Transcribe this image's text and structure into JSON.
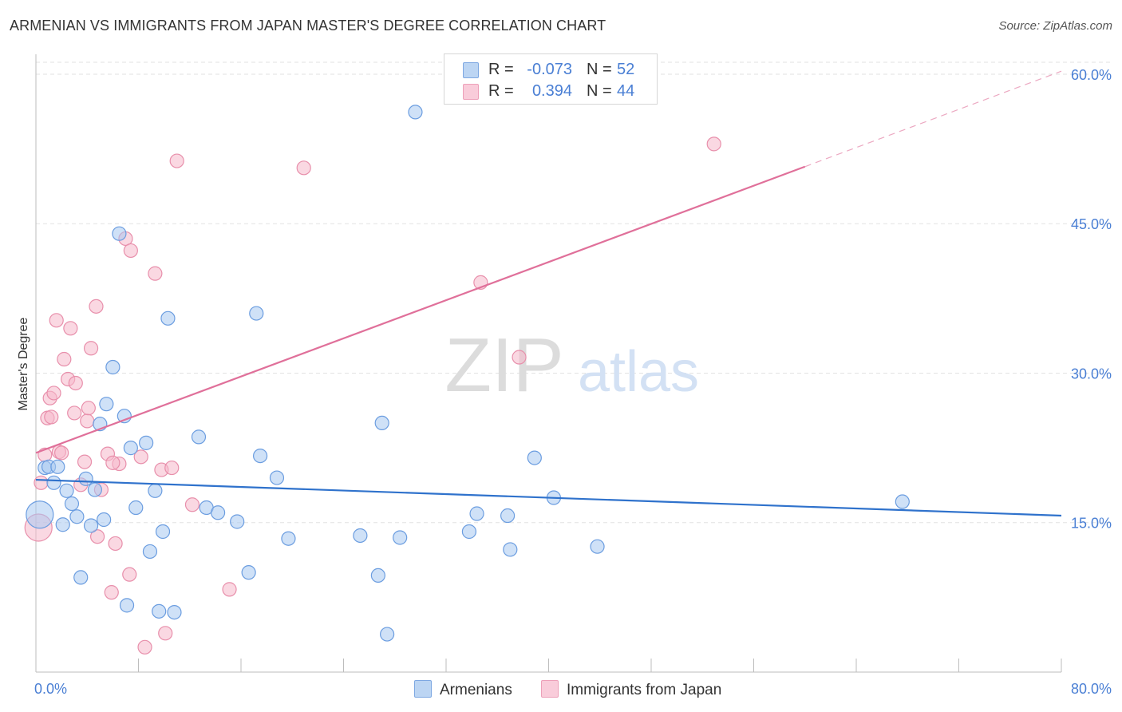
{
  "chart_data": {
    "type": "scatter",
    "title": "ARMENIAN VS IMMIGRANTS FROM JAPAN MASTER'S DEGREE CORRELATION CHART",
    "source": "Source: ZipAtlas.com",
    "ylabel": "Master's Degree",
    "xlabel": "",
    "watermark": {
      "zip": "ZIP",
      "atlas": "atlas"
    },
    "x_range": [
      0,
      80
    ],
    "y_range": [
      0,
      62
    ],
    "x_tick_labels": [
      "0.0%",
      "80.0%"
    ],
    "y_ticks": [
      {
        "value": 60,
        "label": "60.0%"
      },
      {
        "value": 45,
        "label": "45.0%"
      },
      {
        "value": 30,
        "label": "30.0%"
      },
      {
        "value": 15,
        "label": "15.0%"
      }
    ],
    "colors": {
      "armenians_fill": "#a7c8f0",
      "armenians_stroke": "#6b9de0",
      "armenians_line": "#2f72cc",
      "japan_fill": "#f5b8cb",
      "japan_stroke": "#e88fab",
      "japan_line": "#e0709a",
      "accent_text": "#4a7fd4"
    },
    "legend": {
      "armenians": {
        "r_label": "R =",
        "r_value": "-0.073",
        "n_label": "N =",
        "n_value": "52"
      },
      "japan": {
        "r_label": "R =",
        "r_value": "0.394",
        "n_label": "N =",
        "n_value": "44"
      }
    },
    "series": [
      {
        "name": "Armenians",
        "trend": {
          "x0": 0,
          "y0": 19.3,
          "x1": 80,
          "y1": 15.7,
          "solid_until": 80
        },
        "points": [
          {
            "x": 0.3,
            "y": 15.8,
            "big": true
          },
          {
            "x": 0.7,
            "y": 20.5
          },
          {
            "x": 1.0,
            "y": 20.6
          },
          {
            "x": 1.4,
            "y": 19.0
          },
          {
            "x": 1.7,
            "y": 20.6
          },
          {
            "x": 2.1,
            "y": 14.8
          },
          {
            "x": 2.4,
            "y": 18.2
          },
          {
            "x": 2.8,
            "y": 16.9
          },
          {
            "x": 3.2,
            "y": 15.6
          },
          {
            "x": 3.5,
            "y": 9.5
          },
          {
            "x": 3.9,
            "y": 19.4
          },
          {
            "x": 4.3,
            "y": 14.7
          },
          {
            "x": 4.6,
            "y": 18.3
          },
          {
            "x": 5.0,
            "y": 24.9
          },
          {
            "x": 5.3,
            "y": 15.3
          },
          {
            "x": 5.5,
            "y": 26.9
          },
          {
            "x": 6.0,
            "y": 30.6
          },
          {
            "x": 6.5,
            "y": 44.0
          },
          {
            "x": 6.9,
            "y": 25.7
          },
          {
            "x": 7.1,
            "y": 6.7
          },
          {
            "x": 7.4,
            "y": 22.5
          },
          {
            "x": 7.8,
            "y": 16.5
          },
          {
            "x": 8.6,
            "y": 23.0
          },
          {
            "x": 8.9,
            "y": 12.1
          },
          {
            "x": 9.3,
            "y": 18.2
          },
          {
            "x": 9.6,
            "y": 6.1
          },
          {
            "x": 9.9,
            "y": 14.1
          },
          {
            "x": 10.3,
            "y": 35.5
          },
          {
            "x": 10.8,
            "y": 6.0
          },
          {
            "x": 12.7,
            "y": 23.6
          },
          {
            "x": 13.3,
            "y": 16.5
          },
          {
            "x": 14.2,
            "y": 16.0
          },
          {
            "x": 15.7,
            "y": 15.1
          },
          {
            "x": 16.6,
            "y": 10.0
          },
          {
            "x": 17.2,
            "y": 36.0
          },
          {
            "x": 17.5,
            "y": 21.7
          },
          {
            "x": 18.8,
            "y": 19.5
          },
          {
            "x": 19.7,
            "y": 13.4
          },
          {
            "x": 25.3,
            "y": 13.7
          },
          {
            "x": 26.7,
            "y": 9.7
          },
          {
            "x": 27.0,
            "y": 25.0
          },
          {
            "x": 27.4,
            "y": 3.8
          },
          {
            "x": 28.4,
            "y": 13.5
          },
          {
            "x": 29.6,
            "y": 56.2
          },
          {
            "x": 33.8,
            "y": 14.1
          },
          {
            "x": 34.4,
            "y": 15.9
          },
          {
            "x": 36.8,
            "y": 15.7
          },
          {
            "x": 37.0,
            "y": 12.3
          },
          {
            "x": 38.9,
            "y": 21.5
          },
          {
            "x": 40.4,
            "y": 17.5
          },
          {
            "x": 43.8,
            "y": 12.6
          },
          {
            "x": 67.6,
            "y": 17.1
          }
        ]
      },
      {
        "name": "Immigrants from Japan",
        "trend": {
          "x0": 0,
          "y0": 22.0,
          "x1": 80,
          "y1": 60.3,
          "solid_until": 60.0
        },
        "points": [
          {
            "x": 0.2,
            "y": 14.5,
            "big": true
          },
          {
            "x": 0.4,
            "y": 19.0
          },
          {
            "x": 0.7,
            "y": 21.8
          },
          {
            "x": 0.9,
            "y": 25.5
          },
          {
            "x": 1.1,
            "y": 27.5
          },
          {
            "x": 1.2,
            "y": 25.6
          },
          {
            "x": 1.4,
            "y": 28.0
          },
          {
            "x": 1.6,
            "y": 35.3
          },
          {
            "x": 1.8,
            "y": 22.1
          },
          {
            "x": 2.2,
            "y": 31.4
          },
          {
            "x": 2.5,
            "y": 29.4
          },
          {
            "x": 2.7,
            "y": 34.5
          },
          {
            "x": 3.1,
            "y": 29.0
          },
          {
            "x": 3.5,
            "y": 18.8
          },
          {
            "x": 3.8,
            "y": 21.1
          },
          {
            "x": 4.0,
            "y": 25.2
          },
          {
            "x": 4.3,
            "y": 32.5
          },
          {
            "x": 4.7,
            "y": 36.7
          },
          {
            "x": 4.8,
            "y": 13.6
          },
          {
            "x": 5.1,
            "y": 18.3
          },
          {
            "x": 5.6,
            "y": 21.9
          },
          {
            "x": 5.9,
            "y": 8.0
          },
          {
            "x": 6.2,
            "y": 12.9
          },
          {
            "x": 6.5,
            "y": 20.9
          },
          {
            "x": 7.0,
            "y": 43.5
          },
          {
            "x": 7.3,
            "y": 9.8
          },
          {
            "x": 7.4,
            "y": 42.3
          },
          {
            "x": 8.2,
            "y": 21.6
          },
          {
            "x": 8.5,
            "y": 2.5
          },
          {
            "x": 9.3,
            "y": 40.0
          },
          {
            "x": 9.8,
            "y": 20.3
          },
          {
            "x": 10.1,
            "y": 3.9
          },
          {
            "x": 10.6,
            "y": 20.5
          },
          {
            "x": 11.0,
            "y": 51.3
          },
          {
            "x": 12.2,
            "y": 16.8
          },
          {
            "x": 15.1,
            "y": 8.3
          },
          {
            "x": 20.9,
            "y": 50.6
          },
          {
            "x": 34.7,
            "y": 39.1
          },
          {
            "x": 37.7,
            "y": 31.6
          },
          {
            "x": 52.9,
            "y": 53.0
          },
          {
            "x": 4.1,
            "y": 26.5
          },
          {
            "x": 3.0,
            "y": 26.0
          },
          {
            "x": 6.0,
            "y": 21.0
          },
          {
            "x": 2.0,
            "y": 22.0
          }
        ]
      }
    ]
  }
}
